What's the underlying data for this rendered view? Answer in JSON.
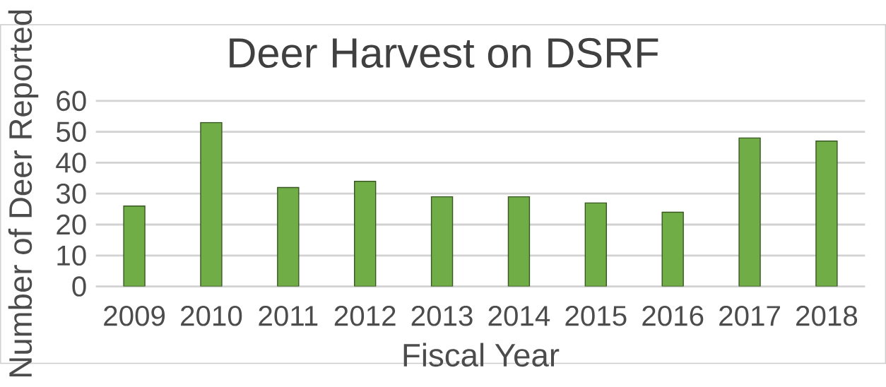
{
  "chart_data": {
    "type": "bar",
    "title": "Deer Harvest on DSRF",
    "xlabel": "Fiscal Year",
    "ylabel": "Number of Deer Reported",
    "categories": [
      "2009",
      "2010",
      "2011",
      "2012",
      "2013",
      "2014",
      "2015",
      "2016",
      "2017",
      "2018"
    ],
    "values": [
      26,
      53,
      32,
      34,
      29,
      29,
      27,
      24,
      48,
      47
    ],
    "color": "#70ad47",
    "ylim": [
      0,
      60
    ],
    "yticks": [
      0,
      10,
      20,
      30,
      40,
      50,
      60
    ],
    "grid": "y"
  }
}
